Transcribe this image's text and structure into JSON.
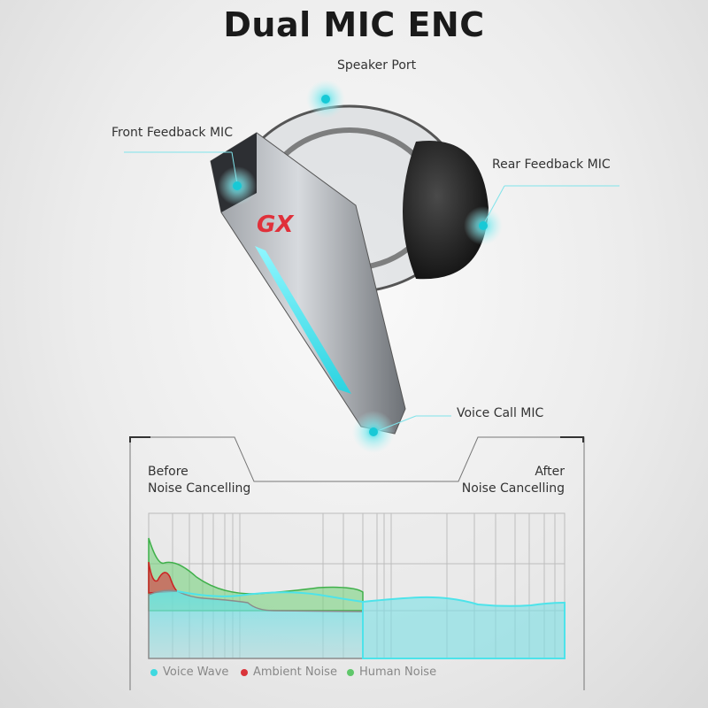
{
  "title": "Dual MIC ENC",
  "callouts": {
    "speaker_port": "Speaker Port",
    "front_feedback_mic": "Front Feedback MIC",
    "rear_feedback_mic": "Rear Feedback MIC",
    "voice_call_mic": "Voice Call MIC"
  },
  "product": {
    "logo": "GX"
  },
  "comparison": {
    "before_line1": "Before",
    "before_line2": "Noise Cancelling",
    "after_line1": "After",
    "after_line2": "Noise Cancelling"
  },
  "legend": [
    {
      "label": "Voice Wave",
      "color": "#3fd9e0"
    },
    {
      "label": "Ambient Noise",
      "color": "#d9343a"
    },
    {
      "label": "Human Noise",
      "color": "#5fc76a"
    }
  ],
  "colors": {
    "accent": "#3fe0e6",
    "logo": "#e0303a"
  }
}
